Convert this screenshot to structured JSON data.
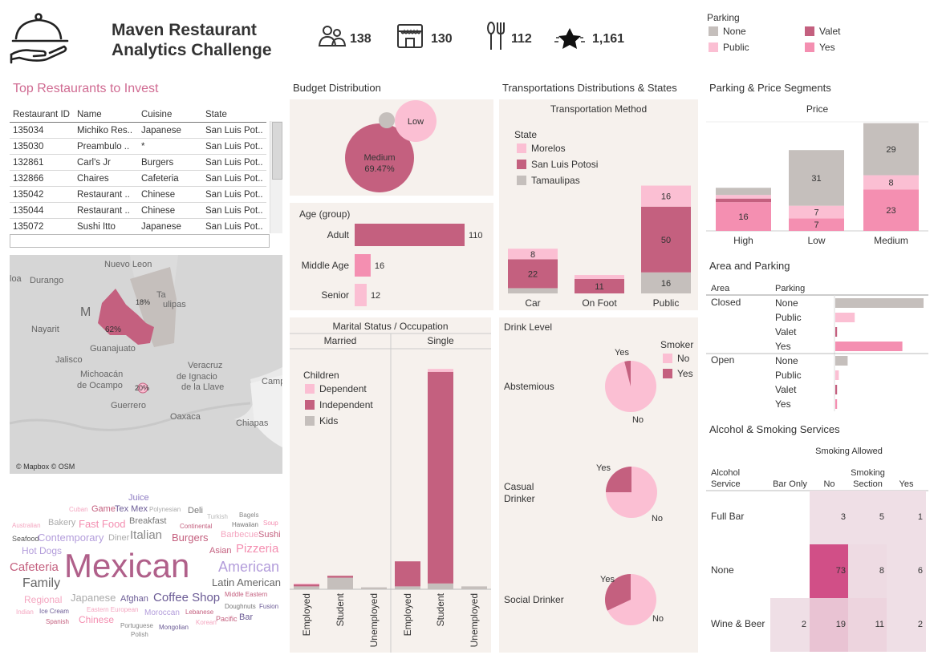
{
  "header": {
    "title_line1": "Maven Restaurant",
    "title_line2": "Analytics Challenge",
    "kpis": [
      {
        "icon": "users-icon",
        "value": "138"
      },
      {
        "icon": "store-icon",
        "value": "130"
      },
      {
        "icon": "cutlery-icon",
        "value": "112"
      },
      {
        "icon": "star-icon",
        "value": "1,161"
      }
    ]
  },
  "parking_legend": {
    "title": "Parking",
    "items": [
      {
        "label": "None",
        "color": "#c5bfbc"
      },
      {
        "label": "Valet",
        "color": "#c4607f"
      },
      {
        "label": "Public",
        "color": "#fbbfd3"
      },
      {
        "label": "Yes",
        "color": "#f48fb1"
      }
    ]
  },
  "top_restaurants": {
    "title": "Top Restaurants to Invest",
    "headers": [
      "Restaurant ID",
      "Name",
      "Cuisine",
      "State"
    ],
    "rows": [
      [
        "135034",
        "Michiko Res..",
        "Japanese",
        "San Luis Pot.."
      ],
      [
        "135030",
        "Preambulo ..",
        "*",
        "San Luis Pot.."
      ],
      [
        "132861",
        "Carl's Jr",
        "Burgers",
        "San Luis Pot.."
      ],
      [
        "132866",
        "Chaires",
        "Cafeteria",
        "San Luis Pot.."
      ],
      [
        "135042",
        "Restaurant ..",
        "Chinese",
        "San Luis Pot.."
      ],
      [
        "135044",
        "Restaurant ..",
        "Chinese",
        "San Luis Pot.."
      ],
      [
        "135072",
        "Sushi Itto",
        "Japanese",
        "San Luis Pot.."
      ]
    ]
  },
  "map": {
    "attribution": "© Mapbox © OSM",
    "places": [
      "Nuevo Leon",
      "Durango",
      "Nayarit",
      "Jalisco",
      "Guanajuato",
      "Michoacán",
      "de Ocampo",
      "Veracruz",
      "de Ignacio",
      "de la Llave",
      "Guerrero",
      "Oaxaca",
      "Chiapas",
      "Camp",
      "Ta",
      "ulipas",
      "loa",
      "M"
    ],
    "pcts": [
      "62%",
      "18%",
      "20%"
    ]
  },
  "word_cloud": [
    {
      "t": "Juice",
      "c": "#8e7cc3",
      "s": 11
    },
    {
      "t": "Cuban",
      "c": "#f4a6c0",
      "s": 8
    },
    {
      "t": "Game",
      "c": "#c4607f",
      "s": 11
    },
    {
      "t": "Tex Mex",
      "c": "#6b5b95",
      "s": 11
    },
    {
      "t": "Polynesian",
      "c": "#aaa",
      "s": 8
    },
    {
      "t": "Deli",
      "c": "#777",
      "s": 11
    },
    {
      "t": "Turkish",
      "c": "#bbb",
      "s": 8
    },
    {
      "t": "Bagels",
      "c": "#888",
      "s": 8
    },
    {
      "t": "Australian",
      "c": "#f4a6c0",
      "s": 8
    },
    {
      "t": "Bakery",
      "c": "#aaa",
      "s": 11
    },
    {
      "t": "Fast Food",
      "c": "#f48fb1",
      "s": 13
    },
    {
      "t": "Breakfast",
      "c": "#777",
      "s": 11
    },
    {
      "t": "Continental",
      "c": "#c4607f",
      "s": 8
    },
    {
      "t": "Hawaiian",
      "c": "#777",
      "s": 8
    },
    {
      "t": "Soup",
      "c": "#f48fb1",
      "s": 8
    },
    {
      "t": "Seafood",
      "c": "#555",
      "s": 9
    },
    {
      "t": "Contemporary",
      "c": "#b39ddb",
      "s": 13
    },
    {
      "t": "Diner",
      "c": "#aaa",
      "s": 11
    },
    {
      "t": "Italian",
      "c": "#888",
      "s": 15
    },
    {
      "t": "Burgers",
      "c": "#c4607f",
      "s": 13
    },
    {
      "t": "Barbecue",
      "c": "#f4a6c0",
      "s": 11
    },
    {
      "t": "Sushi",
      "c": "#c4607f",
      "s": 11
    },
    {
      "t": "Hot Dogs",
      "c": "#b39ddb",
      "s": 12
    },
    {
      "t": "Asian",
      "c": "#c4607f",
      "s": 11
    },
    {
      "t": "Pizzeria",
      "c": "#f48fb1",
      "s": 15
    },
    {
      "t": "Cafeteria",
      "c": "#c4607f",
      "s": 15
    },
    {
      "t": "Mexican",
      "c": "#b0608a",
      "s": 42
    },
    {
      "t": "American",
      "c": "#b39ddb",
      "s": 18
    },
    {
      "t": "Family",
      "c": "#666",
      "s": 16
    },
    {
      "t": "Latin American",
      "c": "#666",
      "s": 13
    },
    {
      "t": "Regional",
      "c": "#f4a6c0",
      "s": 12
    },
    {
      "t": "Japanese",
      "c": "#aaa",
      "s": 13
    },
    {
      "t": "Afghan",
      "c": "#6b5b95",
      "s": 11
    },
    {
      "t": "Coffee Shop",
      "c": "#6b5b95",
      "s": 15
    },
    {
      "t": "Middle Eastern",
      "c": "#c4607f",
      "s": 8
    },
    {
      "t": "Indian",
      "c": "#f4a6c0",
      "s": 8
    },
    {
      "t": "Ice Cream",
      "c": "#6b5b95",
      "s": 8
    },
    {
      "t": "Eastern European",
      "c": "#f4a6c0",
      "s": 8
    },
    {
      "t": "Moroccan",
      "c": "#b39ddb",
      "s": 10
    },
    {
      "t": "Lebanese",
      "c": "#c4607f",
      "s": 8
    },
    {
      "t": "Doughnuts",
      "c": "#777",
      "s": 8
    },
    {
      "t": "Fusion",
      "c": "#6b5b95",
      "s": 8
    },
    {
      "t": "Spanish",
      "c": "#c4607f",
      "s": 8
    },
    {
      "t": "Chinese",
      "c": "#f48fb1",
      "s": 12
    },
    {
      "t": "Korean",
      "c": "#f4a6c0",
      "s": 8
    },
    {
      "t": "Pacific",
      "c": "#c4607f",
      "s": 9
    },
    {
      "t": "Bar",
      "c": "#6b5b95",
      "s": 11
    },
    {
      "t": "Portuguese",
      "c": "#888",
      "s": 8
    },
    {
      "t": "Mongolian",
      "c": "#6b5b95",
      "s": 8
    },
    {
      "t": "Polish",
      "c": "#888",
      "s": 8
    }
  ],
  "chart_data": [
    {
      "id": "budget",
      "type": "bubble",
      "title": "Budget Distribution",
      "points": [
        {
          "label": "Medium",
          "value_label": "69.47%",
          "value": 69.47,
          "color": "#c4607f"
        },
        {
          "label": "Low",
          "value_label": "",
          "color": "#fbbfd3"
        },
        {
          "label": "",
          "value_label": "",
          "color": "#c5bfbc"
        }
      ]
    },
    {
      "id": "age",
      "type": "bar",
      "title": "Age (group)",
      "categories": [
        "Adult",
        "Middle Age",
        "Senior"
      ],
      "values": [
        110,
        16,
        12
      ],
      "colors": [
        "#c4607f",
        "#f48fb1",
        "#fbbfd3"
      ]
    },
    {
      "id": "transport",
      "type": "bar",
      "stacked": true,
      "title": "Transportations Distributions & States",
      "subtitle": "Transportation Method",
      "legend_title": "State",
      "categories": [
        "Car",
        "On Foot",
        "Public"
      ],
      "series": [
        {
          "name": "Tamaulipas",
          "color": "#c5bfbc",
          "values": [
            4,
            0,
            16
          ]
        },
        {
          "name": "San Luis Potosi",
          "color": "#c4607f",
          "values": [
            22,
            11,
            50
          ]
        },
        {
          "name": "Morelos",
          "color": "#fbbfd3",
          "values": [
            8,
            3,
            16
          ]
        }
      ],
      "labels": [
        [
          "",
          "",
          "16"
        ],
        [
          "22",
          "11",
          "50"
        ],
        [
          "8",
          "",
          "16"
        ]
      ]
    },
    {
      "id": "price",
      "type": "bar",
      "stacked": true,
      "title": "Parking & Price Segments",
      "subtitle": "Price",
      "categories": [
        "High",
        "Low",
        "Medium"
      ],
      "series": [
        {
          "name": "Yes",
          "color": "#f48fb1",
          "values": [
            16,
            7,
            23
          ]
        },
        {
          "name": "Valet",
          "color": "#c4607f",
          "values": [
            2,
            0,
            0
          ]
        },
        {
          "name": "Public",
          "color": "#fbbfd3",
          "values": [
            2,
            7,
            8
          ]
        },
        {
          "name": "None",
          "color": "#c5bfbc",
          "values": [
            4,
            31,
            29
          ]
        }
      ],
      "labels": [
        [
          "16",
          "7",
          "23"
        ],
        [
          "",
          "",
          ""
        ],
        [
          "",
          "7",
          "8"
        ],
        [
          "",
          "31",
          "29"
        ]
      ]
    },
    {
      "id": "area",
      "type": "bar",
      "title": "Area and Parking",
      "headers": [
        "Area",
        "Parking"
      ],
      "groups": [
        {
          "area": "Closed",
          "items": [
            [
              "None",
              50,
              "#c5bfbc"
            ],
            [
              "Public",
              11,
              "#fbbfd3"
            ],
            [
              "Valet",
              1,
              "#c4607f"
            ],
            [
              "Yes",
              38,
              "#f48fb1"
            ]
          ]
        },
        {
          "area": "Open",
          "items": [
            [
              "None",
              7,
              "#c5bfbc"
            ],
            [
              "Public",
              2,
              "#fbbfd3"
            ],
            [
              "Valet",
              1,
              "#c4607f"
            ],
            [
              "Yes",
              1,
              "#f48fb1"
            ]
          ]
        }
      ]
    },
    {
      "id": "marital",
      "type": "bar",
      "stacked": true,
      "title": "Marital Status  /  Occupation",
      "legend_title": "Children",
      "panels": [
        "Married",
        "Single"
      ],
      "categories": [
        "Employed",
        "Student",
        "Unemployed"
      ],
      "series": [
        {
          "name": "Kids",
          "color": "#c5bfbc",
          "married": [
            3,
            12,
            2
          ],
          "single": [
            3,
            6,
            3
          ]
        },
        {
          "name": "Independent",
          "color": "#c4607f",
          "married": [
            2,
            2,
            0
          ],
          "single": [
            26,
            220,
            0
          ]
        },
        {
          "name": "Dependent",
          "color": "#fbbfd3",
          "married": [
            1,
            0,
            0
          ],
          "single": [
            0,
            3,
            0
          ]
        }
      ]
    },
    {
      "id": "drink",
      "type": "pie",
      "title": "Drink Level",
      "legend_title": "Smoker",
      "legend": [
        {
          "name": "No",
          "color": "#fbbfd3"
        },
        {
          "name": "Yes",
          "color": "#c4607f"
        }
      ],
      "pies": [
        {
          "label": "Abstemious",
          "yes": 2,
          "no": 49
        },
        {
          "label": "Casual Drinker",
          "yes": 25,
          "no": 75
        },
        {
          "label": "Social Drinker",
          "yes": 32,
          "no": 68
        }
      ],
      "slice_labels": [
        "Yes",
        "No"
      ]
    },
    {
      "id": "alcohol",
      "type": "heatmap",
      "title": "Alcohol & Smoking Services",
      "col_title": "Smoking Allowed",
      "row_title": "Alcohol Service",
      "columns": [
        "Bar Only",
        "No",
        "Smoking Section",
        "Yes"
      ],
      "rows": [
        "Full Bar",
        "None",
        "Wine & Beer"
      ],
      "values": [
        [
          null,
          3,
          5,
          1
        ],
        [
          null,
          73,
          8,
          6
        ],
        [
          2,
          19,
          11,
          2
        ]
      ]
    }
  ]
}
